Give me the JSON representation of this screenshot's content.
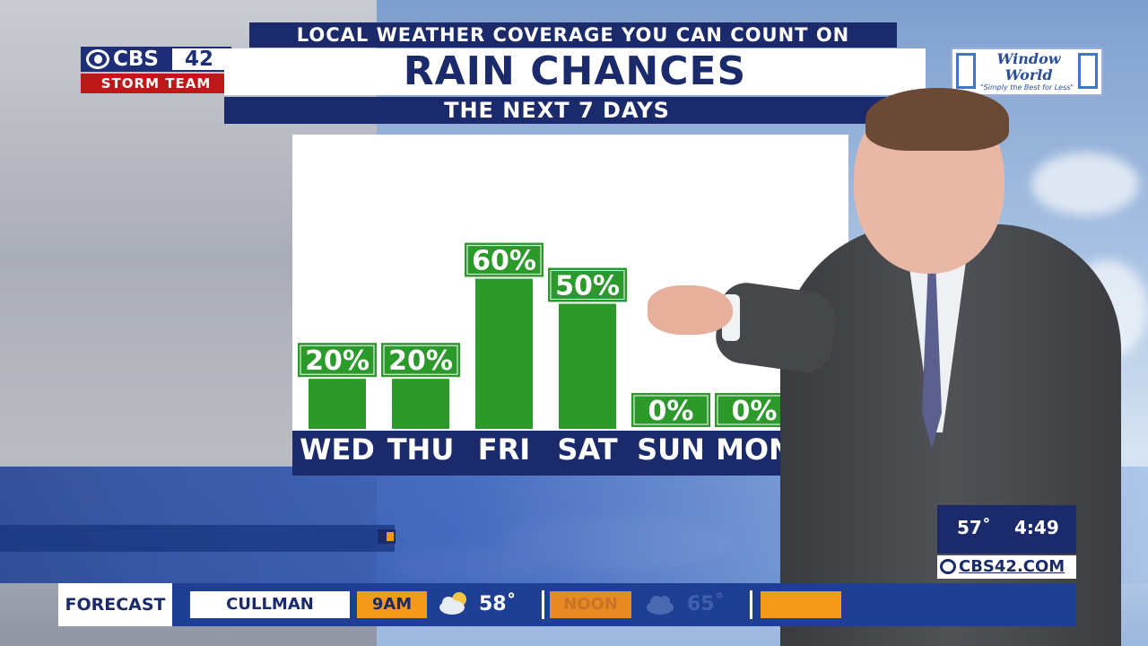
{
  "broadcast": {
    "tagline": "LOCAL WEATHER COVERAGE YOU CAN COUNT ON",
    "title": "RAIN CHANCES",
    "subtitle": "THE NEXT 7 DAYS"
  },
  "logo": {
    "network": "CBS",
    "channel": "42",
    "team": "STORM TEAM"
  },
  "sponsor": {
    "name": "Window World",
    "tagline": "\"Simply the Best for Less\""
  },
  "chart_data": {
    "type": "bar",
    "categories": [
      "WED",
      "THU",
      "FRI",
      "SAT",
      "SUN",
      "MON"
    ],
    "values": [
      20,
      20,
      60,
      50,
      0,
      0
    ],
    "data_labels": [
      "20%",
      "20%",
      "60%",
      "50%",
      "0%",
      "0%"
    ],
    "ylim": [
      0,
      100
    ],
    "bar_color": "#2b9a2b",
    "label_bg": "#2b9a2b"
  },
  "info_box": {
    "temperature": "57˚",
    "time": "4:49",
    "website": "CBS42.COM"
  },
  "ticker": {
    "label": "FORECAST",
    "city": "CULLMAN",
    "slots": [
      {
        "time": "9AM",
        "temp": "58˚",
        "icon": "partly-cloudy-icon"
      },
      {
        "time": "NOON",
        "temp": "65˚",
        "icon": "cloud-icon"
      }
    ]
  },
  "colors": {
    "navy": "#1b2a6b",
    "orange": "#f39a1b",
    "green": "#2b9a2b"
  }
}
